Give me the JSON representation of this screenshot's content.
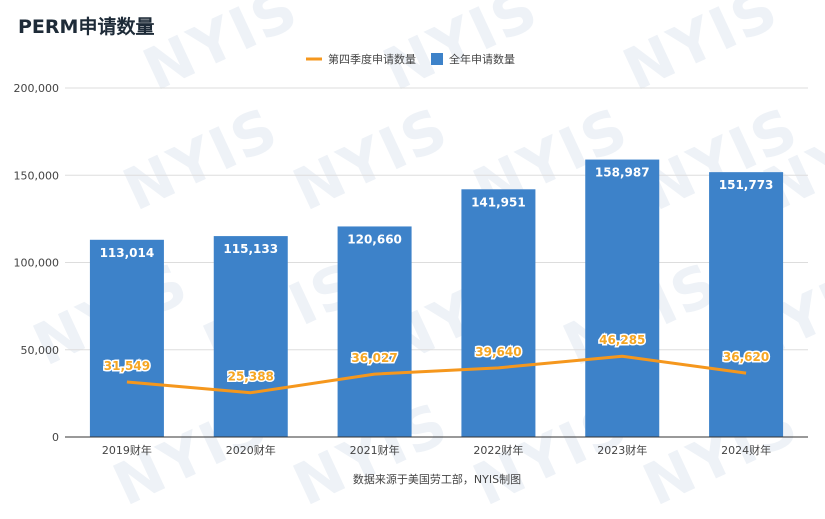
{
  "title": "PERM申请数量",
  "source": "数据来源于美国劳工部，NYIS制图",
  "watermark": "NYIS",
  "colors": {
    "bar": "#3d82c9",
    "line": "#f5971d",
    "line_label": "#f5a623",
    "grid": "#dddddd",
    "axis": "#333333",
    "text": "#444444"
  },
  "chart_data": {
    "type": "bar",
    "categories": [
      "2019财年",
      "2020财年",
      "2021财年",
      "2022财年",
      "2023财年",
      "2024财年"
    ],
    "series": [
      {
        "name": "全年申请数量",
        "type": "bar",
        "values": [
          113014,
          115133,
          120660,
          141951,
          158987,
          151773
        ],
        "labels": [
          "113,014",
          "115,133",
          "120,660",
          "141,951",
          "158,987",
          "151,773"
        ]
      },
      {
        "name": "第四季度申请数量",
        "type": "line",
        "values": [
          31549,
          25388,
          36027,
          39640,
          46285,
          36620
        ],
        "labels": [
          "31,549",
          "25,388",
          "36,027",
          "39,640",
          "46,285",
          "36,620"
        ]
      }
    ],
    "ylim": [
      0,
      200000
    ],
    "yticks": [
      0,
      50000,
      100000,
      150000,
      200000
    ],
    "ytick_labels": [
      "0",
      "50,000",
      "100,000",
      "150,000",
      "200,000"
    ],
    "grid": true,
    "legend_position": "top-center"
  }
}
